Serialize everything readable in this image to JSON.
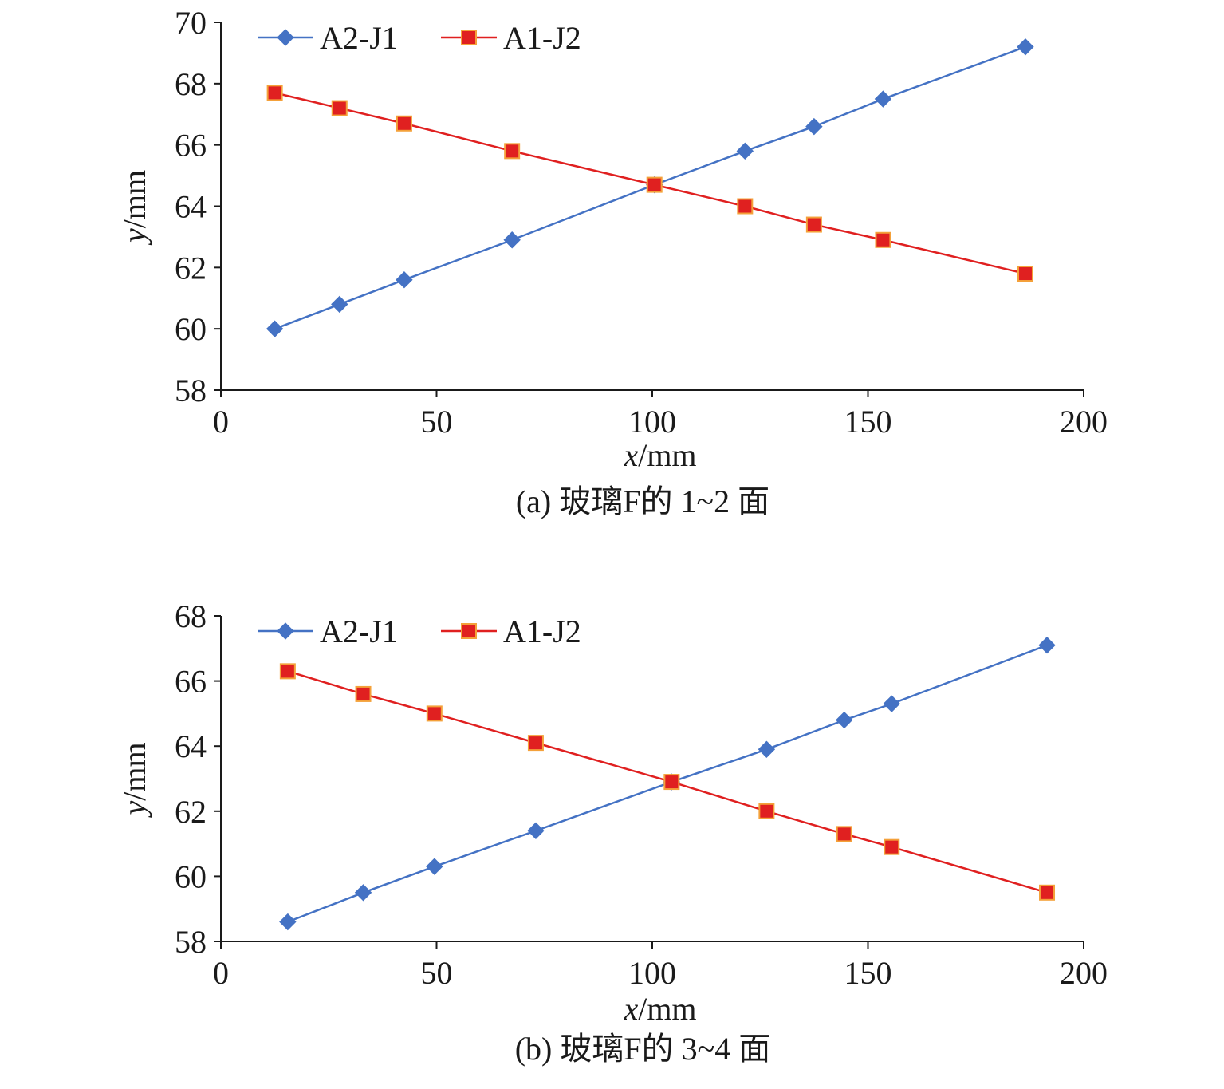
{
  "colors": {
    "blue": "#4472c4",
    "red": "#e02020",
    "red_marker_edge": "#f4a13a",
    "axis": "#1a1a1a"
  },
  "chart_data": [
    {
      "type": "line",
      "caption": "(a) 玻璃F的 1~2 面",
      "xlabel": "x/mm",
      "ylabel": "y/mm",
      "xlim": [
        0,
        200
      ],
      "ylim": [
        58,
        70
      ],
      "xticks": [
        "0",
        "50",
        "100",
        "150",
        "200"
      ],
      "yticks": [
        "58",
        "60",
        "62",
        "64",
        "66",
        "68",
        "70"
      ],
      "legend_position": "top-left",
      "series": [
        {
          "name": "A2-J1",
          "color": "#4472c4",
          "marker": "diamond",
          "x": [
            12.5,
            27.5,
            42.5,
            67.5,
            100.5,
            121.5,
            137.5,
            153.5,
            186.5
          ],
          "y": [
            60.0,
            60.8,
            61.6,
            62.9,
            64.7,
            65.8,
            66.6,
            67.5,
            69.2
          ]
        },
        {
          "name": "A1-J2",
          "color": "#e02020",
          "marker": "square",
          "x": [
            12.5,
            27.5,
            42.5,
            67.5,
            100.5,
            121.5,
            137.5,
            153.5,
            186.5
          ],
          "y": [
            67.7,
            67.2,
            66.7,
            65.8,
            64.7,
            64.0,
            63.4,
            62.9,
            61.8
          ]
        }
      ]
    },
    {
      "type": "line",
      "caption": "(b) 玻璃F的 3~4 面",
      "xlabel": "x/mm",
      "ylabel": "y/mm",
      "xlim": [
        0,
        200
      ],
      "ylim": [
        58,
        68
      ],
      "xticks": [
        "0",
        "50",
        "100",
        "150",
        "200"
      ],
      "yticks": [
        "58",
        "60",
        "62",
        "64",
        "66",
        "68"
      ],
      "legend_position": "top-left",
      "series": [
        {
          "name": "A2-J1",
          "color": "#4472c4",
          "marker": "diamond",
          "x": [
            15.5,
            33.0,
            49.5,
            73.0,
            104.5,
            126.5,
            144.5,
            155.5,
            191.5
          ],
          "y": [
            58.6,
            59.5,
            60.3,
            61.4,
            62.9,
            63.9,
            64.8,
            65.3,
            67.1
          ]
        },
        {
          "name": "A1-J2",
          "color": "#e02020",
          "marker": "square",
          "x": [
            15.5,
            33.0,
            49.5,
            73.0,
            104.5,
            126.5,
            144.5,
            155.5,
            191.5
          ],
          "y": [
            66.3,
            65.6,
            65.0,
            64.1,
            62.9,
            62.0,
            61.3,
            60.9,
            59.5
          ]
        }
      ]
    }
  ]
}
